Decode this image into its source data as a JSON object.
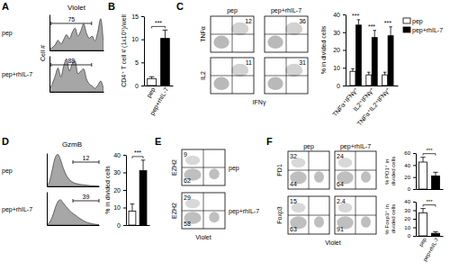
{
  "chart_data": [
    {
      "panel": "A",
      "type": "histogram",
      "title": "Violet",
      "y_label": "Cell #",
      "tick_labels": false,
      "x": [
        0,
        1,
        2,
        3,
        4,
        5,
        6,
        7,
        8,
        9,
        10,
        11,
        12,
        13,
        14,
        15,
        16,
        17,
        18,
        19
      ],
      "xlim": [
        0,
        19
      ],
      "ylim": [
        0,
        100
      ],
      "series": [
        {
          "name": "pep",
          "values": [
            4,
            8,
            16,
            28,
            18,
            30,
            44,
            32,
            50,
            62,
            40,
            54,
            74,
            48,
            34,
            40,
            26,
            52,
            88,
            16
          ],
          "gate": 75
        },
        {
          "name": "pep+rhIL-7",
          "values": [
            8,
            22,
            44,
            66,
            42,
            72,
            92,
            58,
            78,
            86,
            50,
            58,
            64,
            36,
            22,
            16,
            10,
            18,
            30,
            8
          ],
          "gate": 88
        }
      ]
    },
    {
      "panel": "B",
      "type": "bar",
      "y_label": "CD4⁺ T cell # (1x10⁵)/well",
      "categories": [
        "pep",
        "pep+rhIL-7"
      ],
      "values": [
        1.5,
        10.2
      ],
      "errors": [
        0.4,
        1.8
      ],
      "colors": [
        "#ffffff",
        "#000000"
      ],
      "ylim": [
        0,
        15
      ],
      "yticks": [
        0,
        5,
        10,
        15
      ],
      "annotations": [
        "***"
      ]
    },
    {
      "panel": "C",
      "type": "dot_plot",
      "tick_labels": false,
      "columns": [
        "pep",
        "pep+rhIL-7"
      ],
      "x_label": "IFNγ",
      "rows": [
        {
          "y_label": "TNFα",
          "plots": [
            {
              "upper_right": 12
            },
            {
              "upper_right": 36
            }
          ]
        },
        {
          "y_label": "IL2",
          "plots": [
            {
              "upper_right": 11
            },
            {
              "upper_right": 31
            }
          ]
        }
      ]
    },
    {
      "type": "bar",
      "y_label": "% in divided cells",
      "categories": [
        "TNFα⁺IFNγ⁺",
        "IL2⁺IFNγ⁺",
        "TNFα⁺IL2⁺IFNγ⁺"
      ],
      "series": [
        {
          "name": "pep",
          "color": "#ffffff",
          "values": [
            8,
            6,
            6
          ],
          "errors": [
            1.5,
            1.5,
            1.5
          ]
        },
        {
          "name": "pep+rhIL-7",
          "color": "#000000",
          "values": [
            34,
            27,
            28
          ],
          "errors": [
            3,
            4,
            5
          ]
        }
      ],
      "ylim": [
        0,
        40
      ],
      "yticks": [
        0,
        10,
        20,
        30,
        40
      ],
      "legend": "right",
      "annotations": [
        "***",
        "***",
        "***"
      ]
    },
    {
      "panel": "D",
      "type": "histogram",
      "title": "GzmB",
      "tick_labels": false,
      "x": [
        0,
        1,
        2,
        3,
        4,
        5,
        6,
        7,
        8,
        9,
        10,
        11,
        12,
        13,
        14,
        15,
        16,
        17,
        18,
        19
      ],
      "xlim": [
        0,
        19
      ],
      "ylim": [
        0,
        100
      ],
      "series": [
        {
          "name": "pep",
          "values": [
            3,
            15,
            50,
            85,
            96,
            80,
            55,
            35,
            22,
            15,
            10,
            8,
            6,
            5,
            4,
            3,
            2,
            2,
            1,
            1
          ],
          "gate": 12
        },
        {
          "name": "pep+rhIL-7",
          "values": [
            2,
            8,
            25,
            50,
            70,
            76,
            66,
            56,
            46,
            38,
            32,
            26,
            20,
            15,
            10,
            7,
            5,
            3,
            2,
            1
          ],
          "gate": 39
        }
      ]
    },
    {
      "type": "bar",
      "y_label": "% in divided cells",
      "categories": [
        null,
        null
      ],
      "values": [
        8,
        31
      ],
      "errors": [
        4,
        6
      ],
      "colors": [
        "#ffffff",
        "#000000"
      ],
      "ylim": [
        0,
        40
      ],
      "yticks": [
        0,
        10,
        20,
        30,
        40
      ],
      "annotations": [
        "***"
      ]
    },
    {
      "panel": "E",
      "type": "dot_plot",
      "tick_labels": false,
      "x_label": "Violet",
      "rows": [
        {
          "y_label": "EZH2",
          "name": "pep",
          "plots": [
            {
              "upper_left": 9,
              "lower_left": 62
            }
          ]
        },
        {
          "y_label": "EZH2",
          "name": "pep+rhIL-7",
          "plots": [
            {
              "upper_left": 29,
              "lower_left": 58
            }
          ]
        }
      ]
    },
    {
      "panel": "F",
      "type": "dot_plot",
      "tick_labels": false,
      "columns": [
        "pep",
        "pep+rhIL-7"
      ],
      "x_label": "Violet",
      "rows": [
        {
          "y_label": "PD1",
          "plots": [
            {
              "upper_left": 32,
              "lower_left": 44
            },
            {
              "upper_left": 24,
              "lower_left": 64
            }
          ]
        },
        {
          "y_label": "Foxp3",
          "plots": [
            {
              "upper_left": 15,
              "lower_left": 63
            },
            {
              "upper_left": 2.4,
              "lower_left": 91
            }
          ]
        }
      ]
    },
    {
      "type": "bar",
      "y_label": "% PD1⁺ in divided cells",
      "categories": [
        null,
        null
      ],
      "values": [
        45,
        22
      ],
      "errors": [
        8,
        6
      ],
      "colors": [
        "#ffffff",
        "#000000"
      ],
      "ylim": [
        0,
        60
      ],
      "yticks": [
        0,
        20,
        40,
        60
      ],
      "annotations": [
        "***"
      ]
    },
    {
      "type": "bar",
      "y_label": "% Foxp3⁺ in divided cells",
      "categories": [
        "pep",
        "pep+rhIL-7"
      ],
      "values": [
        27,
        3
      ],
      "errors": [
        5,
        2
      ],
      "colors": [
        "#ffffff",
        "#000000"
      ],
      "ylim": [
        0,
        40
      ],
      "yticks": [
        0,
        10,
        20,
        30,
        40
      ],
      "annotations": [
        "***"
      ]
    }
  ]
}
